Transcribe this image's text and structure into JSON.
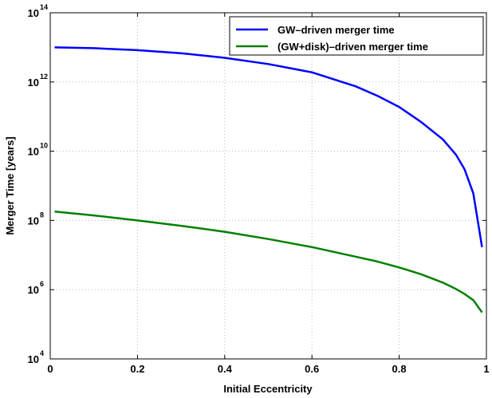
{
  "chart_data": {
    "type": "line",
    "title": "",
    "xlabel": "Initial Eccentricity",
    "ylabel": "Merger Time [years]",
    "xlim": [
      0,
      1
    ],
    "ylim": [
      10000,
      100000000000000
    ],
    "yscale": "log",
    "grid": true,
    "legend_position": "top-right",
    "x_ticks": [
      "0",
      "0.2",
      "0.4",
      "0.6",
      "0.8",
      "1"
    ],
    "x_tick_values": [
      0,
      0.2,
      0.4,
      0.6,
      0.8,
      1
    ],
    "y_ticks": [
      {
        "base": "10",
        "exp": "4",
        "value": 10000
      },
      {
        "base": "10",
        "exp": "6",
        "value": 1000000
      },
      {
        "base": "10",
        "exp": "8",
        "value": 100000000
      },
      {
        "base": "10",
        "exp": "10",
        "value": 10000000000
      },
      {
        "base": "10",
        "exp": "12",
        "value": 1000000000000
      },
      {
        "base": "10",
        "exp": "14",
        "value": 100000000000000
      }
    ],
    "series": [
      {
        "name": "GW–driven merger time",
        "color": "#0000ff",
        "x": [
          0.01,
          0.1,
          0.2,
          0.3,
          0.4,
          0.5,
          0.6,
          0.7,
          0.75,
          0.8,
          0.85,
          0.9,
          0.93,
          0.95,
          0.97,
          0.99
        ],
        "y": [
          10000000000000.0,
          9500000000000.0,
          8300000000000.0,
          6800000000000.0,
          5000000000000.0,
          3300000000000.0,
          1900000000000.0,
          750000000000.0,
          400000000000.0,
          190000000000.0,
          70000000000.0,
          22000000000.0,
          8000000000.0,
          3000000000.0,
          600000000.0,
          17000000.0
        ]
      },
      {
        "name": "(GW+disk)–driven merger time",
        "color": "#008000",
        "x": [
          0.01,
          0.1,
          0.2,
          0.3,
          0.4,
          0.5,
          0.6,
          0.7,
          0.75,
          0.8,
          0.85,
          0.9,
          0.93,
          0.95,
          0.97,
          0.99
        ],
        "y": [
          180000000.0,
          140000000.0,
          100000000.0,
          70000000.0,
          47000000.0,
          29000000.0,
          17000000.0,
          9000000.0,
          6500000.0,
          4400000.0,
          2800000.0,
          1600000.0,
          1050000.0,
          750000.0,
          500000.0,
          220000.0
        ]
      }
    ]
  }
}
